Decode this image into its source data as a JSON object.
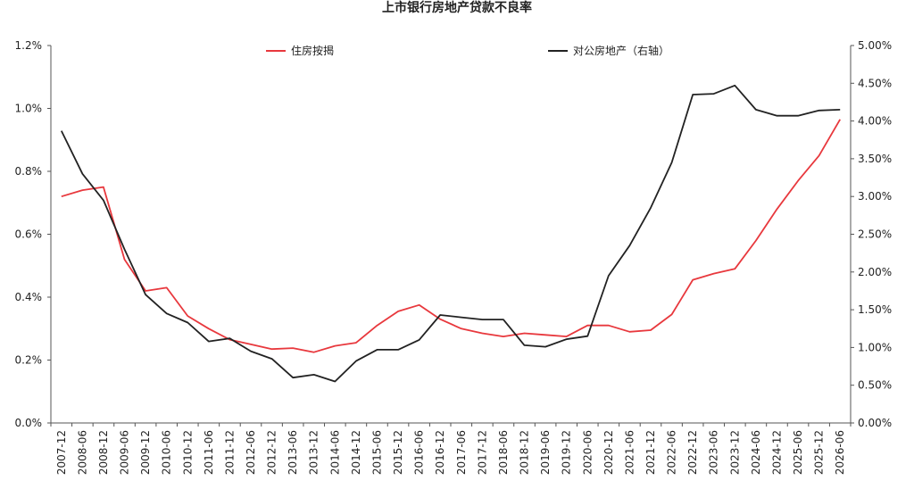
{
  "chart_data": {
    "type": "line",
    "title": "上市银行房地产贷款不良率",
    "xlabel": "",
    "ylabel": "",
    "categories": [
      "2007-12",
      "2008-06",
      "2008-12",
      "2009-06",
      "2009-12",
      "2010-06",
      "2010-12",
      "2011-06",
      "2011-12",
      "2012-06",
      "2012-12",
      "2013-06",
      "2013-12",
      "2014-06",
      "2014-12",
      "2015-06",
      "2015-12",
      "2016-06",
      "2016-12",
      "2017-06",
      "2017-12",
      "2018-06",
      "2018-12",
      "2019-06",
      "2019-12",
      "2020-06",
      "2020-12",
      "2021-06",
      "2021-12",
      "2022-06",
      "2022-12",
      "2023-06",
      "2023-12",
      "2024-06",
      "2024-12",
      "2025-06",
      "2025-12",
      "2026-06"
    ],
    "x_tick_labels": [
      "2007-12",
      "2008-06",
      "2008-12",
      "2009-06",
      "2009-12",
      "2010-06",
      "2010-12",
      "2011-06",
      "2011-12",
      "2012-06",
      "2012-12",
      "2013-06",
      "2013-12",
      "2014-06",
      "2014-12",
      "2015-06",
      "2015-12",
      "2016-06",
      "2016-12",
      "2017-06",
      "2017-12",
      "2018-06",
      "2018-12",
      "2019-06",
      "2019-12",
      "2020-06",
      "2020-12",
      "2021-06",
      "2021-12",
      "2022-06",
      "2022-12",
      "2023-06",
      "2023-12",
      "2024-06",
      "2024-12",
      "2025-06",
      "2025-12",
      "2026-06"
    ],
    "ylim_left": [
      0,
      1.2
    ],
    "ylim_right": [
      0,
      5.0
    ],
    "y_left_ticks": [
      "0.0%",
      "0.2%",
      "0.4%",
      "0.6%",
      "0.8%",
      "1.0%",
      "1.2%"
    ],
    "y_right_ticks": [
      "0.00%",
      "0.50%",
      "1.00%",
      "1.50%",
      "2.00%",
      "2.50%",
      "3.00%",
      "3.50%",
      "4.00%",
      "4.50%",
      "5.00%"
    ],
    "grid": false,
    "legend_position": "top",
    "series": [
      {
        "name": "住房按揭",
        "axis": "left",
        "color": "#e8383d",
        "values": [
          0.72,
          0.74,
          0.75,
          0.52,
          0.42,
          0.43,
          0.34,
          0.3,
          0.265,
          0.25,
          0.235,
          0.238,
          0.225,
          0.245,
          0.255,
          0.31,
          0.355,
          0.375,
          0.33,
          0.3,
          0.285,
          0.275,
          0.285,
          0.28,
          0.275,
          0.31,
          0.31,
          0.29,
          0.295,
          0.345,
          0.455,
          0.475,
          0.49,
          0.58,
          0.68,
          0.77,
          0.85,
          0.965
        ]
      },
      {
        "name": "对公房地产（右轴）",
        "axis": "right",
        "color": "#222222",
        "values": [
          3.87,
          3.3,
          2.95,
          2.3,
          1.7,
          1.45,
          1.33,
          1.08,
          1.12,
          0.95,
          0.85,
          0.6,
          0.64,
          0.55,
          0.82,
          0.97,
          0.97,
          1.1,
          1.43,
          1.4,
          1.37,
          1.37,
          1.03,
          1.01,
          1.11,
          1.15,
          1.95,
          2.35,
          2.85,
          3.45,
          4.35,
          4.36,
          4.47,
          4.15,
          4.07,
          4.07,
          4.14,
          4.15
        ]
      }
    ]
  }
}
